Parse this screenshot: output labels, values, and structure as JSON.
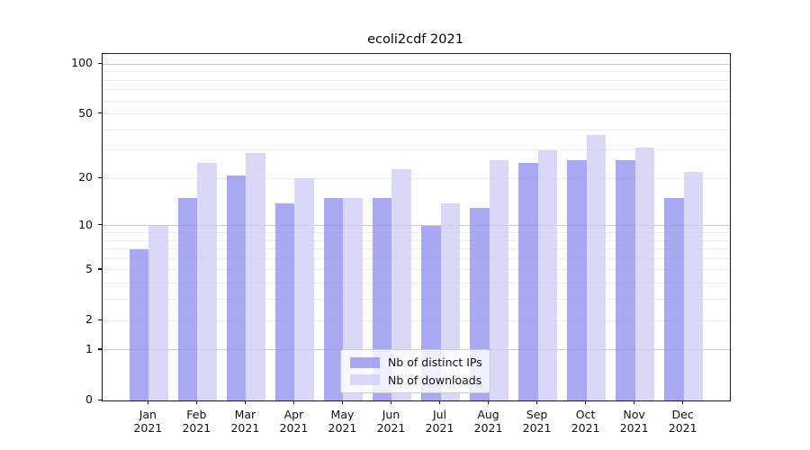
{
  "chart_data": {
    "type": "bar",
    "title": "ecoli2cdf 2021",
    "categories": [
      "Jan",
      "Feb",
      "Mar",
      "Apr",
      "May",
      "Jun",
      "Jul",
      "Aug",
      "Sep",
      "Oct",
      "Nov",
      "Dec"
    ],
    "x_year_label": "2021",
    "series": [
      {
        "name": "Nb of distinct IPs",
        "color": "rgba(146,146,240,0.8)",
        "values": [
          7,
          15,
          21,
          14,
          15,
          15,
          10,
          13,
          25,
          26,
          26,
          15
        ]
      },
      {
        "name": "Nb of downloads",
        "color": "rgba(208,208,245,0.8)",
        "values": [
          10,
          25,
          29,
          20,
          15,
          23,
          14,
          26,
          30,
          37,
          31,
          22
        ]
      }
    ],
    "xlabel": "",
    "ylabel": "",
    "yscale": "log1p",
    "y_ticks": [
      0,
      1,
      2,
      5,
      10,
      20,
      50,
      100
    ],
    "y_axis_max": 115,
    "major_gridlines": [
      1,
      10,
      100
    ],
    "minor_gridlines": [
      2,
      3,
      4,
      5,
      6,
      7,
      8,
      9,
      20,
      30,
      40,
      50,
      60,
      70,
      80,
      90
    ],
    "grid_color_major": "#c9c9c9",
    "grid_color_minor": "#ececec",
    "legend_position": "bottom-center",
    "grid": "on"
  }
}
